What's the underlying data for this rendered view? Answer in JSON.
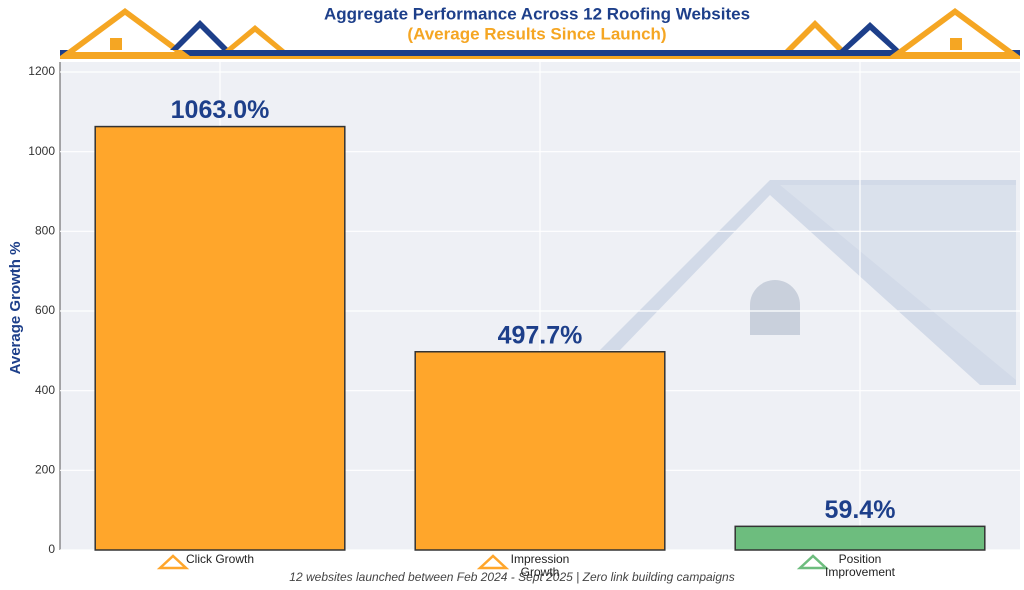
{
  "chart_data": {
    "type": "bar",
    "title": "Aggregate Performance Across 12 Roofing Websites",
    "subtitle": "(Average Results Since Launch)",
    "y_label": "Average Growth %",
    "footnote": "12 websites launched between Feb 2024 - Sept 2025 | Zero link building campaigns",
    "categories": [
      "Click Growth",
      "Impression Growth",
      "Position Improvement"
    ],
    "values": [
      1063.0,
      497.7,
      59.4
    ],
    "value_labels": [
      "1063.0%",
      "497.7%",
      "59.4%"
    ],
    "colors": [
      "#ffa62b",
      "#ffa62b",
      "#6dbd7e"
    ],
    "ylim": [
      0,
      1200
    ],
    "yticks": [
      0,
      200,
      400,
      600,
      800,
      1000,
      1200
    ],
    "grid": true
  }
}
